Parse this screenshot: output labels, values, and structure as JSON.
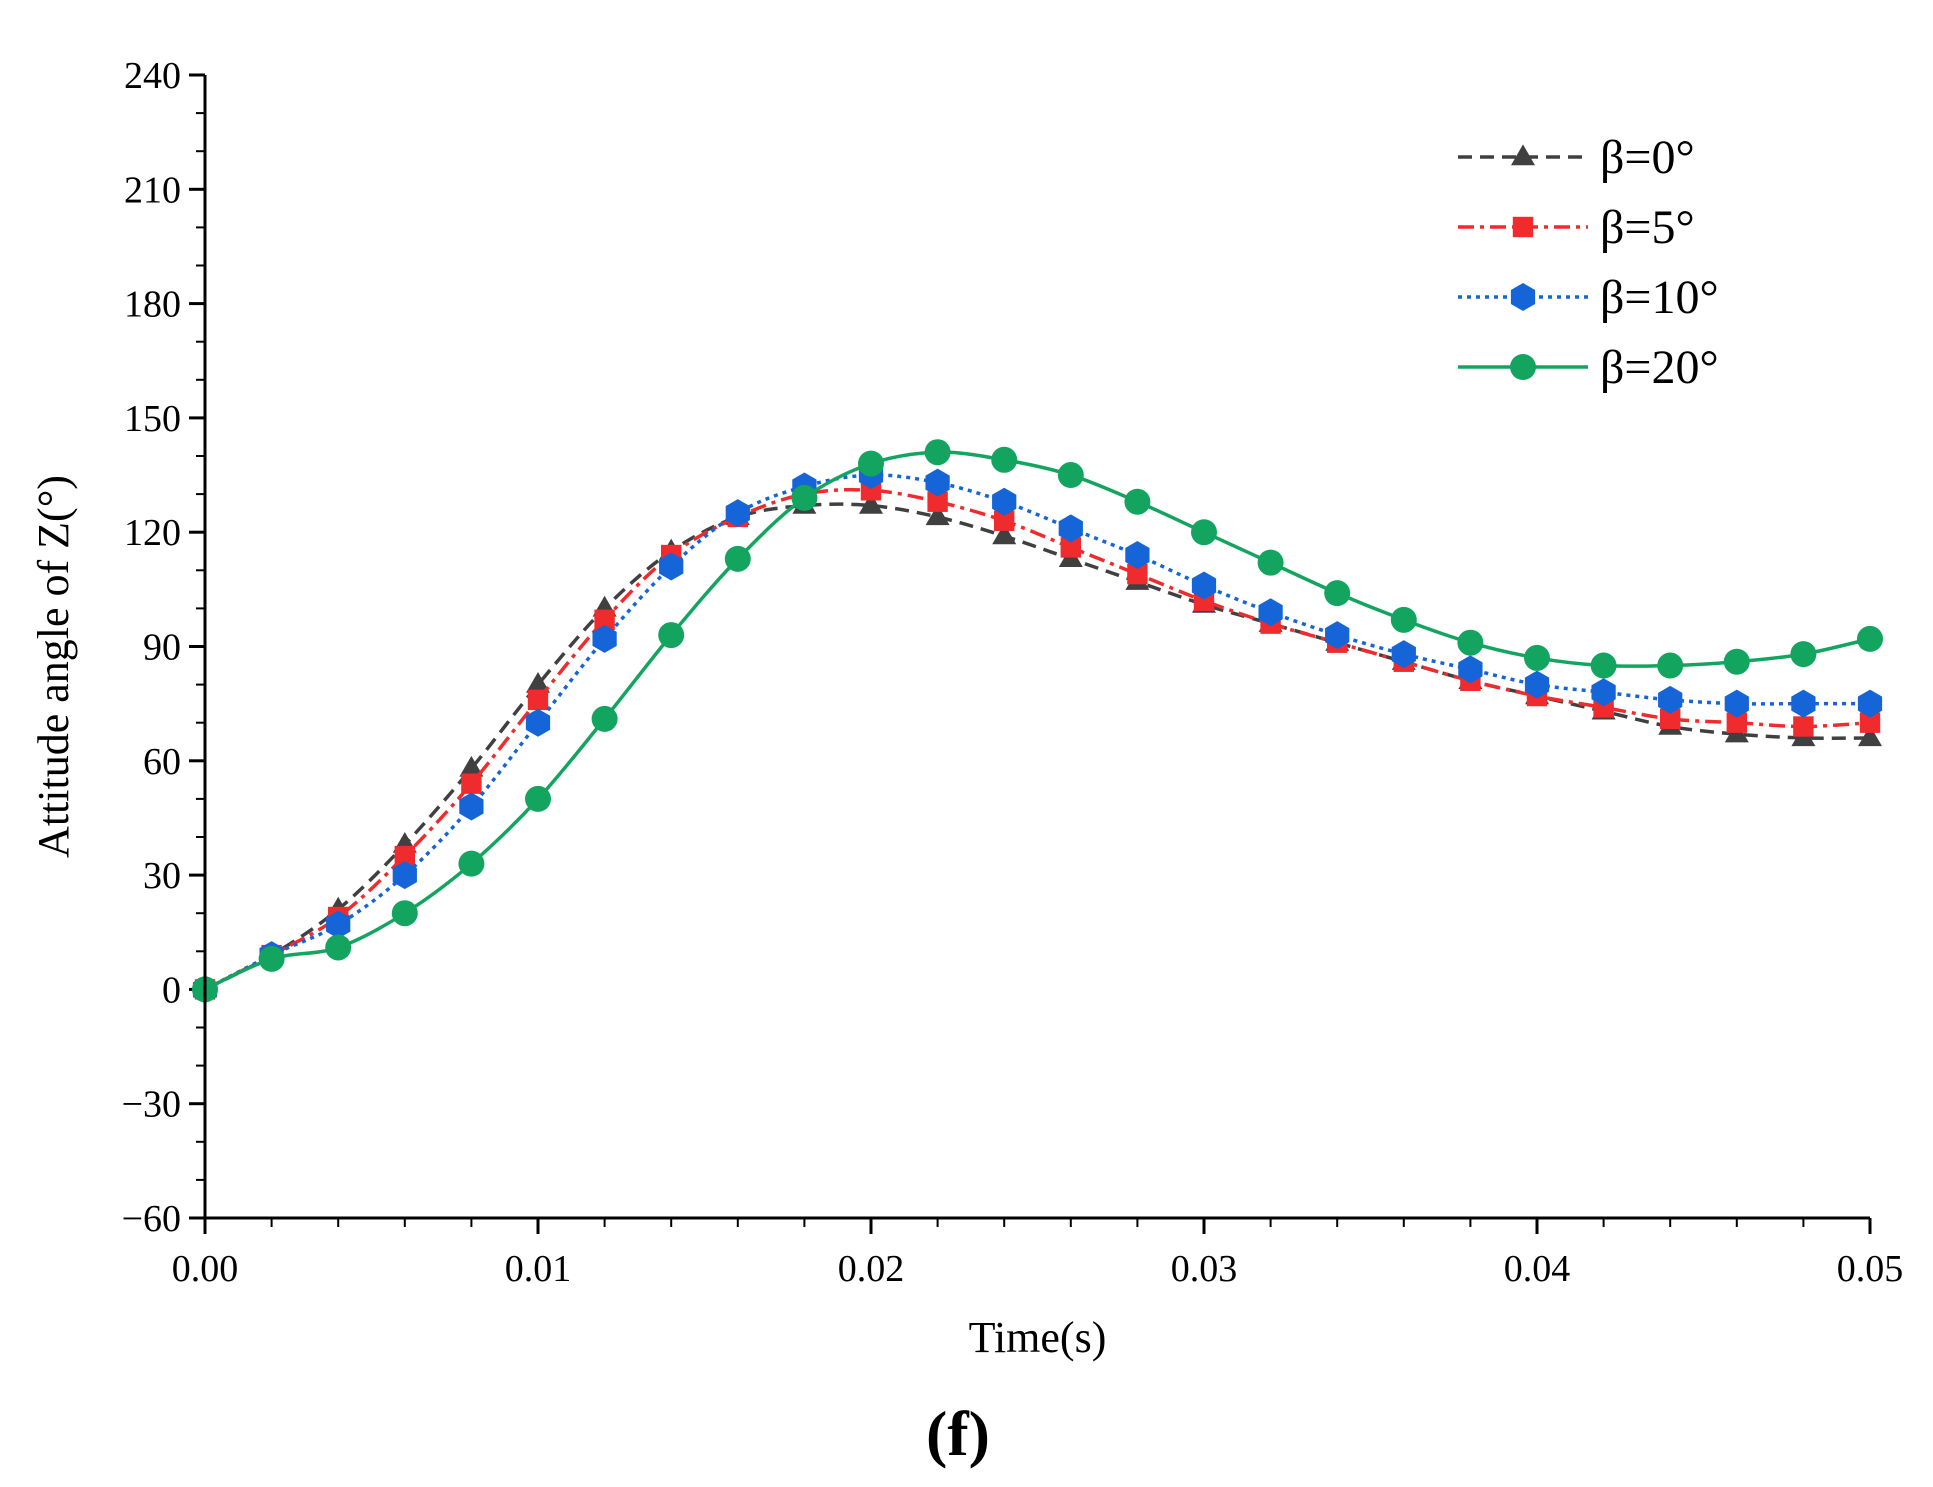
{
  "panel_label": "(f)",
  "chart_data": {
    "type": "line",
    "title": "",
    "xlabel": "Time(s)",
    "ylabel": "Attitude angle of Z(°)",
    "xlim": [
      0,
      0.05
    ],
    "ylim": [
      -60,
      240
    ],
    "xticks": [
      0.0,
      0.01,
      0.02,
      0.03,
      0.04,
      0.05
    ],
    "xtick_labels": [
      "0.00",
      "0.01",
      "0.02",
      "0.03",
      "0.04",
      "0.05"
    ],
    "yticks": [
      -60,
      -30,
      0,
      30,
      60,
      90,
      120,
      150,
      180,
      210,
      240
    ],
    "ytick_labels": [
      "−60",
      "−30",
      "0",
      "30",
      "60",
      "90",
      "120",
      "150",
      "180",
      "210",
      "240"
    ],
    "legend_position": "top-right",
    "x": [
      0,
      0.002,
      0.004,
      0.006,
      0.008,
      0.01,
      0.012,
      0.014,
      0.016,
      0.018,
      0.02,
      0.022,
      0.024,
      0.026,
      0.028,
      0.03,
      0.032,
      0.034,
      0.036,
      0.038,
      0.04,
      0.042,
      0.044,
      0.046,
      0.048,
      0.05
    ],
    "series": [
      {
        "name": "β=0°",
        "color": "#404040",
        "dash": "dash",
        "marker": "triangle",
        "values": [
          0,
          9,
          21,
          38,
          58,
          80,
          100,
          115,
          124,
          127,
          127,
          124,
          119,
          113,
          107,
          101,
          96,
          91,
          86,
          81,
          77,
          73,
          69,
          67,
          66,
          66
        ]
      },
      {
        "name": "β=5°",
        "color": "#ef2b2d",
        "dash": "dashdot",
        "marker": "square",
        "values": [
          0,
          9,
          19,
          35,
          54,
          76,
          97,
          114,
          124,
          130,
          131,
          128,
          123,
          116,
          109,
          102,
          96,
          91,
          86,
          81,
          77,
          74,
          71,
          70,
          69,
          70
        ]
      },
      {
        "name": "β=10°",
        "color": "#1565d8",
        "dash": "dot",
        "marker": "hexagon",
        "values": [
          0,
          9,
          17,
          30,
          48,
          70,
          92,
          111,
          125,
          132,
          135,
          133,
          128,
          121,
          114,
          106,
          99,
          93,
          88,
          84,
          80,
          78,
          76,
          75,
          75,
          75
        ]
      },
      {
        "name": "β=20°",
        "color": "#13a55f",
        "dash": "solid",
        "marker": "circle",
        "values": [
          0,
          8,
          11,
          20,
          33,
          50,
          71,
          93,
          113,
          129,
          138,
          141,
          139,
          135,
          128,
          120,
          112,
          104,
          97,
          91,
          87,
          85,
          85,
          86,
          88,
          92
        ]
      }
    ]
  }
}
